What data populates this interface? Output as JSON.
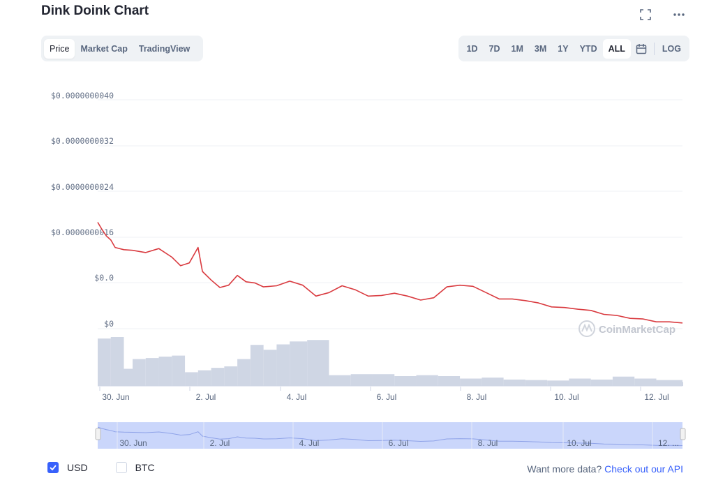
{
  "title": "Dink Doink Chart",
  "icons": {
    "fullscreen": "fullscreen-icon",
    "more": "more-dots-icon",
    "calendar": "calendar-icon",
    "check": "checkmark-icon"
  },
  "tabs": [
    {
      "label": "Price",
      "active": true
    },
    {
      "label": "Market Cap",
      "active": false
    },
    {
      "label": "TradingView",
      "active": false
    }
  ],
  "ranges": [
    {
      "label": "1D",
      "active": false
    },
    {
      "label": "7D",
      "active": false
    },
    {
      "label": "1M",
      "active": false
    },
    {
      "label": "3M",
      "active": false
    },
    {
      "label": "1Y",
      "active": false
    },
    {
      "label": "YTD",
      "active": false
    },
    {
      "label": "ALL",
      "active": true
    }
  ],
  "log_label": "LOG",
  "watermark": "CoinMarketCap",
  "currencies": [
    {
      "label": "USD",
      "checked": true
    },
    {
      "label": "BTC",
      "checked": false
    }
  ],
  "api": {
    "prefix": "Want more data?",
    "link": "Check out our API"
  },
  "colors": {
    "line": "#d93a3f",
    "volume": "#cfd6e4",
    "accent": "#3861fb",
    "navigator": "#cad6fb"
  },
  "chart_data": {
    "type": "line",
    "y_tick_labels": [
      "$0.0000000040",
      "$0.0000000032",
      "$0.0000000024",
      "$0.0000000016",
      "$0.0",
      "$0"
    ],
    "x_tick_labels": [
      "30. Jun",
      "2. Jul",
      "4. Jul",
      "6. Jul",
      "8. Jul",
      "10. Jul",
      "12. Jul"
    ],
    "navigator_tick_labels": [
      "30. Jun",
      "2. Jul",
      "4. Jul",
      "6. Jul",
      "8. Jul",
      "10. Jul",
      "12. ..."
    ],
    "x_range": [
      "29. Jun",
      "12. Jul"
    ],
    "ylim": [
      0,
      4e-09
    ],
    "grid": true,
    "series": [
      {
        "x": [
          29.2,
          29.3,
          29.4,
          29.5,
          29.6,
          29.8,
          30.0,
          30.3,
          30.6,
          30.9,
          31.1,
          31.3,
          31.5,
          31.6,
          31.8,
          32.0,
          32.2,
          32.4,
          32.6,
          32.8,
          33.0,
          33.3,
          33.6,
          33.9,
          34.2,
          34.5,
          34.8,
          35.1,
          35.4,
          35.7,
          36.0,
          36.3,
          36.6,
          36.9,
          37.2,
          37.5,
          37.8,
          38.1,
          38.4,
          38.7,
          39.0,
          39.3,
          39.6,
          39.9,
          40.2,
          40.5,
          40.8,
          41.1,
          41.4,
          41.7,
          42.0,
          42.3,
          42.6
        ],
        "y": [
          1.86e-09,
          1.73e-09,
          1.62e-09,
          1.55e-09,
          1.42e-09,
          1.38e-09,
          1.37e-09,
          1.33e-09,
          1.4e-09,
          1.25e-09,
          1.1e-09,
          1.15e-09,
          1.42e-09,
          1e-09,
          8.5e-10,
          7.2e-10,
          7.6e-10,
          9.3e-10,
          8.2e-10,
          8e-10,
          7.3e-10,
          7.5e-10,
          8.3e-10,
          7.6e-10,
          5.7e-10,
          6.3e-10,
          7.5e-10,
          6.8e-10,
          5.7e-10,
          5.8e-10,
          6.2e-10,
          5.7e-10,
          5e-10,
          5.4e-10,
          7.3e-10,
          7.6e-10,
          7.4e-10,
          6.3e-10,
          5.2e-10,
          5.2e-10,
          4.9e-10,
          4.5e-10,
          3.8e-10,
          3.7e-10,
          3.4e-10,
          3.2e-10,
          2.5e-10,
          2.3e-10,
          1.8e-10,
          1.7e-10,
          1.2e-10,
          1.2e-10,
          1e-10
        ]
      }
    ],
    "volume": {
      "x": [
        29.2,
        29.5,
        29.8,
        30.0,
        30.3,
        30.6,
        30.9,
        31.2,
        31.5,
        31.8,
        32.1,
        32.4,
        32.7,
        33.0,
        33.3,
        33.6,
        34.0,
        34.5,
        35.0,
        35.5,
        36.0,
        36.5,
        37.0,
        37.5,
        38.0,
        38.5,
        39.0,
        39.5,
        40.0,
        40.5,
        41.0,
        41.5,
        42.0,
        42.6
      ],
      "y": [
        0.97,
        1.0,
        0.35,
        0.55,
        0.57,
        0.6,
        0.62,
        0.28,
        0.32,
        0.37,
        0.4,
        0.55,
        0.84,
        0.74,
        0.85,
        0.91,
        0.94,
        0.22,
        0.24,
        0.24,
        0.2,
        0.22,
        0.2,
        0.15,
        0.17,
        0.13,
        0.12,
        0.11,
        0.15,
        0.13,
        0.19,
        0.15,
        0.12,
        0.08
      ]
    }
  }
}
